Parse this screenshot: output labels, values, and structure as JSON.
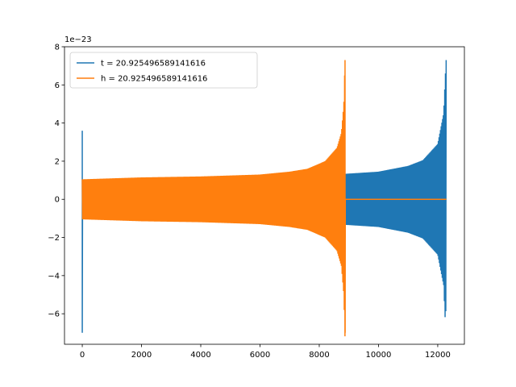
{
  "chart_data": {
    "type": "line",
    "title": "",
    "xlabel": "",
    "ylabel": "",
    "xlim": [
      -600,
      12900
    ],
    "ylim": [
      -7.6,
      8.0
    ],
    "x_ticks": [
      0,
      2000,
      4000,
      6000,
      8000,
      10000,
      12000
    ],
    "y_ticks": [
      -6,
      -4,
      -2,
      0,
      2,
      4,
      6,
      8
    ],
    "y_offset_label": "1e−23",
    "grid": false,
    "legend_position": "top-left",
    "series": [
      {
        "name": "t = 20.925496589141616",
        "color": "#1f77b4",
        "signal": "spike then oscillation",
        "spike_x": 0,
        "spike_range": [
          -7.0,
          3.6
        ],
        "envelope_x": [
          0,
          2000,
          4000,
          6000,
          8000,
          9000,
          10000,
          11000,
          11500,
          12000,
          12200,
          12280
        ],
        "envelope": [
          1.0,
          1.05,
          1.1,
          1.15,
          1.25,
          1.35,
          1.45,
          1.75,
          2.05,
          2.9,
          4.5,
          7.3
        ],
        "x_end": 12290,
        "y_min_end": -6.1
      },
      {
        "name": "h = 20.925496589141616",
        "color": "#ff7f0e",
        "signal": "oscillation then flat",
        "envelope_x": [
          0,
          2000,
          4000,
          6000,
          7000,
          7600,
          8200,
          8600,
          8750,
          8830,
          8870
        ],
        "envelope": [
          1.05,
          1.15,
          1.2,
          1.3,
          1.45,
          1.6,
          2.0,
          2.7,
          3.5,
          5.0,
          7.3
        ],
        "y_min_end": -7.0,
        "x_peak": 8870,
        "flat_from": 8880,
        "flat_to": 12290,
        "flat_value": 0
      }
    ]
  }
}
